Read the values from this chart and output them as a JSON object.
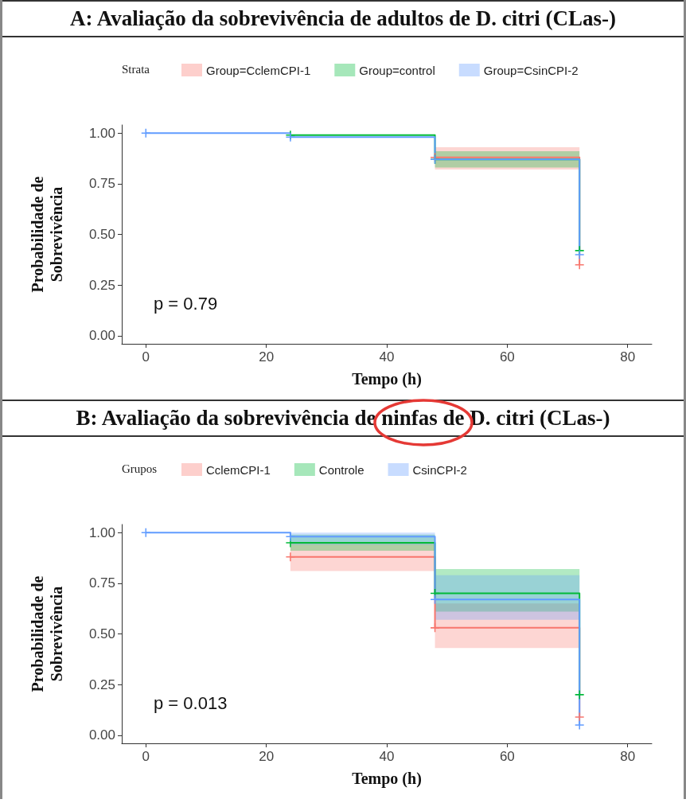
{
  "chart_data": [
    {
      "type": "line",
      "title": "A: Avaliação da sobrevivência de adultos de D. citri (CLas-)",
      "xlabel": "Tempo (h)",
      "ylabel": "Probabilidade de\nSobrevivência",
      "legend_title": "Strata",
      "legend": "top",
      "marker": "cross",
      "grid": false,
      "annotations": [
        "p = 0.79"
      ],
      "xlim": [
        -4,
        84
      ],
      "xticks": [
        0,
        20,
        40,
        60,
        80
      ],
      "ylim": [
        -0.04,
        1.04
      ],
      "yticks": [
        {
          "value": 0,
          "label": "0.00"
        },
        {
          "value": 0.25,
          "label": "0.25"
        },
        {
          "value": 0.5,
          "label": "0.50"
        },
        {
          "value": 0.75,
          "label": "0.75"
        },
        {
          "value": 1,
          "label": "1.00"
        }
      ],
      "series": [
        {
          "name": "Group=CclemCPI-1",
          "color": "#f8766d",
          "x": [
            48,
            72,
            72
          ],
          "values": [
            0.88,
            0.88,
            0.35
          ],
          "lower": [
            0.82,
            0.82,
            null
          ],
          "upper": [
            0.93,
            0.93,
            null
          ]
        },
        {
          "name": "Group=control",
          "color": "#00ba38",
          "x": [
            24,
            48,
            48,
            72,
            72
          ],
          "values": [
            0.99,
            0.99,
            0.87,
            0.87,
            0.42
          ],
          "lower": [
            null,
            null,
            0.83,
            0.83,
            null
          ],
          "upper": [
            null,
            null,
            0.91,
            0.91,
            null
          ]
        },
        {
          "name": "Group=CsinCPI-2",
          "color": "#619cff",
          "x": [
            0,
            24,
            24,
            48,
            48,
            72,
            72
          ],
          "values": [
            1.0,
            1.0,
            0.98,
            0.98,
            0.87,
            0.87,
            0.4
          ]
        }
      ]
    },
    {
      "type": "line",
      "title": "B: Avaliação da sobrevivência de ninfas de D. citri (CLas-)",
      "xlabel": "Tempo (h)",
      "ylabel": "Probabilidade de\nSobrevivência",
      "legend_title": "Grupos",
      "legend": "top",
      "marker": "cross",
      "grid": false,
      "annotations": [
        "p = 0.013"
      ],
      "xlim": [
        -4,
        84
      ],
      "xticks": [
        0,
        20,
        40,
        60,
        80
      ],
      "ylim": [
        -0.04,
        1.04
      ],
      "yticks": [
        {
          "value": 0,
          "label": "0.00"
        },
        {
          "value": 0.25,
          "label": "0.25"
        },
        {
          "value": 0.5,
          "label": "0.50"
        },
        {
          "value": 0.75,
          "label": "0.75"
        },
        {
          "value": 1,
          "label": "1.00"
        }
      ],
      "series": [
        {
          "name": "CclemCPI-1",
          "color": "#f8766d",
          "x": [
            24,
            48,
            48,
            72,
            72
          ],
          "values": [
            0.88,
            0.88,
            0.53,
            0.53,
            0.09
          ],
          "lower": [
            0.81,
            0.81,
            0.43,
            0.43,
            null
          ],
          "upper": [
            0.95,
            0.95,
            0.65,
            0.65,
            null
          ]
        },
        {
          "name": "Controle",
          "color": "#00ba38",
          "x": [
            24,
            48,
            48,
            72,
            72
          ],
          "values": [
            0.95,
            0.95,
            0.7,
            0.7,
            0.2
          ],
          "lower": [
            0.91,
            0.91,
            0.61,
            0.61,
            null
          ],
          "upper": [
            0.99,
            0.99,
            0.82,
            0.82,
            null
          ]
        },
        {
          "name": "CsinCPI-2",
          "color": "#619cff",
          "x": [
            0,
            24,
            24,
            48,
            48,
            72,
            72
          ],
          "values": [
            1.0,
            1.0,
            0.98,
            0.98,
            0.67,
            0.67,
            0.05
          ],
          "lower": [
            null,
            null,
            0.94,
            0.94,
            0.57,
            0.57,
            null
          ],
          "upper": [
            null,
            null,
            1.0,
            1.0,
            0.79,
            0.79,
            null
          ]
        }
      ]
    }
  ]
}
